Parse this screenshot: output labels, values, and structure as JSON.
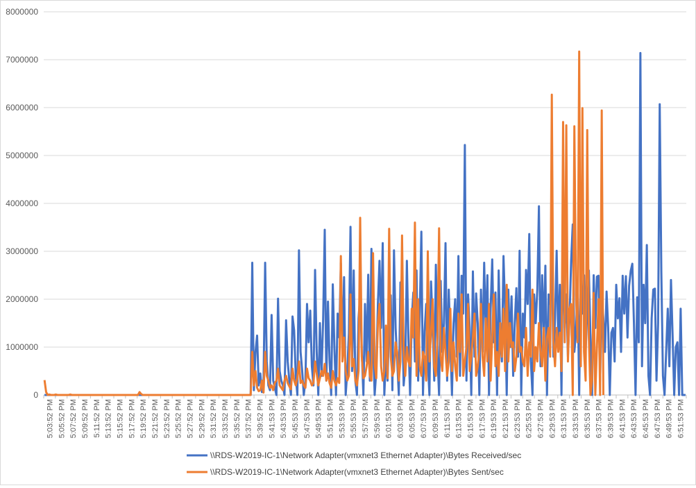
{
  "chart_data": {
    "type": "line",
    "title": "",
    "xlabel": "",
    "ylabel": "",
    "ylim": [
      0,
      8000000
    ],
    "y_ticks": [
      0,
      1000000,
      2000000,
      3000000,
      4000000,
      5000000,
      6000000,
      7000000,
      8000000
    ],
    "y_tick_labels": [
      "0",
      "1000000",
      "2000000",
      "3000000",
      "4000000",
      "5000000",
      "6000000",
      "7000000",
      "8000000"
    ],
    "x_tick_labels": [
      "5:03:52 PM",
      "5:05:52 PM",
      "5:07:52 PM",
      "5:09:52 PM",
      "5:11:52 PM",
      "5:13:52 PM",
      "5:15:52 PM",
      "5:17:52 PM",
      "5:19:52 PM",
      "5:21:52 PM",
      "5:23:52 PM",
      "5:25:52 PM",
      "5:27:52 PM",
      "5:29:52 PM",
      "5:31:52 PM",
      "5:33:52 PM",
      "5:35:52 PM",
      "5:37:52 PM",
      "5:39:52 PM",
      "5:41:53 PM",
      "5:43:53 PM",
      "5:45:53 PM",
      "5:47:53 PM",
      "5:49:53 PM",
      "5:51:53 PM",
      "5:53:53 PM",
      "5:55:53 PM",
      "5:57:53 PM",
      "5:59:53 PM",
      "6:01:53 PM",
      "6:03:53 PM",
      "6:05:53 PM",
      "6:07:53 PM",
      "6:09:53 PM",
      "6:11:53 PM",
      "6:13:53 PM",
      "6:15:53 PM",
      "6:17:53 PM",
      "6:19:53 PM",
      "6:21:53 PM",
      "6:23:53 PM",
      "6:25:53 PM",
      "6:27:53 PM",
      "6:29:53 PM",
      "6:31:53 PM",
      "6:33:53 PM",
      "6:35:53 PM",
      "6:37:53 PM",
      "6:39:53 PM",
      "6:41:53 PM",
      "6:43:53 PM",
      "6:45:53 PM",
      "6:47:53 PM",
      "6:49:53 PM",
      "6:51:53 PM"
    ],
    "grid": true,
    "legend_position": "bottom",
    "sample_interval_seconds": 15,
    "series": [
      {
        "name": "\\\\RDS-W2019-IC-1\\Network Adapter(vmxnet3 Ethernet Adapter)\\Bytes Received/sec",
        "color": "#4472c4",
        "values": [
          0,
          0,
          0,
          0,
          0,
          0,
          0,
          0,
          0,
          0,
          0,
          0,
          0,
          0,
          0,
          0,
          0,
          0,
          0,
          0,
          0,
          0,
          0,
          0,
          0,
          0,
          0,
          0,
          0,
          0,
          0,
          0,
          0,
          0,
          0,
          0,
          0,
          0,
          0,
          0,
          0,
          0,
          0,
          0,
          0,
          0,
          0,
          0,
          0,
          0,
          0,
          0,
          0,
          0,
          0,
          0,
          0,
          0,
          0,
          0,
          0,
          0,
          0,
          0,
          0,
          0,
          0,
          0,
          0,
          0,
          0,
          0,
          0,
          0,
          0,
          0,
          0,
          0,
          0,
          0,
          0,
          0,
          0,
          0,
          0,
          0,
          0,
          0,
          0,
          0,
          0,
          0,
          0,
          0,
          0,
          0,
          0,
          0,
          0,
          0,
          0,
          0,
          0,
          0,
          0,
          0,
          0,
          0,
          0,
          0,
          0,
          0,
          0,
          0,
          0,
          0,
          0,
          0,
          0,
          0,
          0,
          0,
          0,
          0,
          0,
          0,
          0,
          0,
          0,
          2760000,
          100000,
          900000,
          1240000,
          200000,
          450000,
          60000,
          300000,
          2760000,
          700000,
          200000,
          100000,
          1670000,
          300000,
          150000,
          0,
          2010000,
          500000,
          300000,
          200000,
          0,
          1560000,
          700000,
          300000,
          0,
          1640000,
          1350000,
          400000,
          0,
          3020000,
          900000,
          500000,
          0,
          300000,
          1900000,
          1100000,
          1760000,
          600000,
          200000,
          2610000,
          900000,
          0,
          1500000,
          400000,
          1560000,
          3450000,
          300000,
          1950000,
          700000,
          0,
          2310000,
          1000000,
          0,
          1700000,
          1200000,
          2750000,
          900000,
          2460000,
          0,
          500000,
          1300000,
          3510000,
          500000,
          2600000,
          300000,
          0,
          1600000,
          2110000,
          900000,
          0,
          1900000,
          700000,
          2510000,
          300000,
          3050000,
          1100000,
          0,
          500000,
          1900000,
          2800000,
          1400000,
          3170000,
          0,
          800000,
          300000,
          1500000,
          2080000,
          100000,
          3020000,
          1400000,
          700000,
          0,
          2350000,
          1800000,
          200000,
          600000,
          2800000,
          1100000,
          0,
          1560000,
          2140000,
          700000,
          2600000,
          300000,
          1700000,
          3410000,
          0,
          1330000,
          1900000,
          700000,
          0,
          2370000,
          1500000,
          300000,
          2720000,
          800000,
          0,
          2380000,
          900000,
          1500000,
          3170000,
          300000,
          2200000,
          1100000,
          0,
          1500000,
          2000000,
          800000,
          2900000,
          400000,
          2490000,
          1700000,
          5220000,
          300000,
          2100000,
          1400000,
          0,
          2580000,
          800000,
          2120000,
          1500000,
          0,
          2200000,
          900000,
          2760000,
          1300000,
          2500000,
          0,
          1800000,
          2830000,
          1100000,
          2140000,
          0,
          2600000,
          1200000,
          700000,
          2900000,
          1800000,
          0,
          2200000,
          1000000,
          2060000,
          400000,
          1500000,
          2230000,
          800000,
          3010000,
          0,
          1700000,
          1200000,
          2610000,
          1900000,
          3360000,
          700000,
          0,
          2100000,
          1500000,
          2200000,
          3940000,
          600000,
          2500000,
          1300000,
          2700000,
          0,
          2100000,
          1900000,
          2850000,
          800000,
          1600000,
          3010000,
          1100000,
          2300000,
          0,
          3390000,
          1400000,
          2100000,
          800000,
          1600000,
          2800000,
          3560000,
          900000,
          1300000,
          2400000,
          0,
          2700000,
          1700000,
          2500000,
          900000,
          1800000,
          2600000,
          1200000,
          0,
          2500000,
          1400000,
          2470000,
          2490000,
          300000,
          2100000,
          1600000,
          900000,
          2160000,
          1400000,
          0,
          1300000,
          1400000,
          700000,
          2300000,
          1600000,
          2020000,
          900000,
          2490000,
          1700000,
          2480000,
          1200000,
          2280000,
          2590000,
          2740000,
          1500000,
          0,
          2040000,
          1100000,
          7140000,
          600000,
          2300000,
          1500000,
          3130000,
          400000,
          0,
          1600000,
          2200000,
          2220000,
          300000,
          1500000,
          6070000,
          2580000,
          400000,
          0,
          900000,
          1800000,
          600000,
          2400000,
          1250000,
          0,
          1000000,
          1100000,
          0,
          1800000,
          0,
          0,
          0
        ]
      },
      {
        "name": "\\\\RDS-W2019-IC-1\\Network Adapter(vmxnet3 Ethernet Adapter)\\Bytes Sent/sec",
        "color": "#ed7d31",
        "values": [
          310000,
          60000,
          0,
          10000,
          0,
          0,
          0,
          10000,
          0,
          0,
          0,
          0,
          0,
          0,
          0,
          0,
          10000,
          0,
          0,
          0,
          0,
          0,
          0,
          0,
          0,
          0,
          0,
          0,
          0,
          0,
          0,
          0,
          0,
          0,
          0,
          0,
          0,
          0,
          0,
          0,
          0,
          0,
          0,
          0,
          0,
          0,
          0,
          0,
          0,
          0,
          0,
          0,
          0,
          0,
          0,
          0,
          0,
          0,
          0,
          60000,
          20000,
          0,
          0,
          0,
          0,
          0,
          0,
          0,
          0,
          0,
          0,
          0,
          0,
          0,
          0,
          0,
          0,
          0,
          0,
          0,
          0,
          0,
          0,
          0,
          0,
          0,
          0,
          0,
          0,
          0,
          0,
          0,
          0,
          0,
          0,
          0,
          0,
          0,
          0,
          0,
          0,
          0,
          0,
          0,
          0,
          0,
          0,
          0,
          0,
          0,
          0,
          0,
          0,
          0,
          0,
          0,
          0,
          0,
          0,
          0,
          0,
          0,
          0,
          0,
          0,
          0,
          0,
          0,
          0,
          900000,
          200000,
          500000,
          150000,
          80000,
          100000,
          300000,
          50000,
          900000,
          400000,
          300000,
          150000,
          200000,
          100000,
          250000,
          300000,
          550000,
          200000,
          150000,
          100000,
          300000,
          400000,
          250000,
          180000,
          120000,
          550000,
          300000,
          200000,
          350000,
          700000,
          250000,
          300000,
          200000,
          150000,
          550000,
          350000,
          300000,
          200000,
          250000,
          700000,
          450000,
          200000,
          350000,
          500000,
          400000,
          650000,
          300000,
          450000,
          250000,
          150000,
          500000,
          300000,
          200000,
          350000,
          250000,
          2900000,
          700000,
          1200000,
          500000,
          300000,
          400000,
          2100000,
          600000,
          750000,
          300000,
          200000,
          500000,
          3700000,
          800000,
          350000,
          400000,
          600000,
          900000,
          400000,
          300000,
          2960000,
          650000,
          350000,
          1500000,
          1900000,
          600000,
          300000,
          500000,
          1450000,
          350000,
          3470000,
          800000,
          400000,
          500000,
          1100000,
          900000,
          300000,
          700000,
          3330000,
          900000,
          400000,
          1000000,
          700000,
          600000,
          1800000,
          1200000,
          3600000,
          400000,
          2000000,
          600000,
          400000,
          900000,
          800000,
          300000,
          3000000,
          700000,
          1300000,
          2000000,
          600000,
          400000,
          1200000,
          3480000,
          800000,
          500000,
          1400000,
          900000,
          400000,
          700000,
          1800000,
          500000,
          1100000,
          600000,
          300000,
          1700000,
          900000,
          2100000,
          400000,
          700000,
          1000000,
          1900000,
          500000,
          800000,
          1200000,
          1700000,
          400000,
          600000,
          900000,
          1900000,
          800000,
          400000,
          1600000,
          700000,
          1900000,
          300000,
          1200000,
          2100000,
          600000,
          900000,
          400000,
          1500000,
          800000,
          1800000,
          500000,
          2300000,
          700000,
          1500000,
          1000000,
          1100000,
          500000,
          800000,
          1700000,
          900000,
          1000000,
          700000,
          600000,
          1400000,
          400000,
          1100000,
          800000,
          2200000,
          500000,
          1000000,
          700000,
          1500000,
          900000,
          600000,
          1400000,
          300000,
          1200000,
          1400000,
          800000,
          6270000,
          1100000,
          600000,
          1400000,
          900000,
          1300000,
          500000,
          5700000,
          1100000,
          5630000,
          700000,
          1800000,
          1900000,
          0,
          5610000,
          2100000,
          1100000,
          7170000,
          600000,
          5990000,
          900000,
          300000,
          5530000,
          1200000,
          0,
          300000,
          2130000,
          0,
          1000000,
          2000000,
          0,
          5940000,
          0
        ]
      }
    ]
  }
}
